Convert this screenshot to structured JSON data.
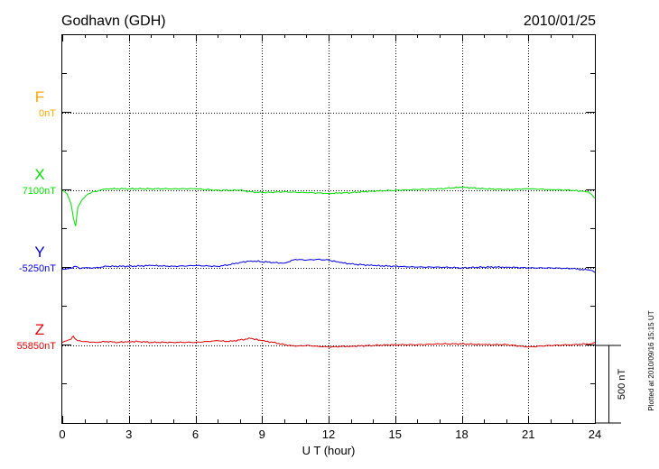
{
  "chart_data": {
    "type": "line",
    "title": "Godhavn (GDH)",
    "date": "2010/01/25",
    "xlabel": "U T (hour)",
    "xlim": [
      0,
      24
    ],
    "xticks": [
      0,
      3,
      6,
      9,
      12,
      15,
      18,
      21,
      24
    ],
    "x_tick_labels": [
      "0",
      "3",
      "6",
      "9",
      "12",
      "15",
      "18",
      "21",
      "24"
    ],
    "scale_bar_label": "500 nT",
    "scale_bar_nT": 500,
    "plotted_at": "Plotted at 2010/09/16 15:15 UT",
    "grid": true,
    "series": [
      {
        "name": "F",
        "baseline_label": "0nT",
        "baseline_nT": 0,
        "color": "#ffa500",
        "x": [],
        "y": []
      },
      {
        "name": "X",
        "baseline_label": "7100nT",
        "baseline_nT": 7100,
        "color": "#00dd00",
        "x": [
          0,
          0.2,
          0.4,
          0.5,
          0.6,
          0.7,
          0.9,
          1.1,
          1.4,
          1.7,
          2,
          3,
          4,
          5,
          6,
          7,
          8,
          8.5,
          9,
          10,
          11,
          12,
          13,
          14,
          15,
          16,
          17,
          18,
          19,
          20,
          21,
          22,
          23,
          23.7,
          24
        ],
        "y": [
          7100,
          7080,
          7010,
          6920,
          6870,
          6990,
          7040,
          7070,
          7090,
          7100,
          7110,
          7110,
          7110,
          7110,
          7110,
          7100,
          7100,
          7090,
          7085,
          7090,
          7085,
          7080,
          7085,
          7095,
          7100,
          7105,
          7110,
          7120,
          7110,
          7105,
          7110,
          7105,
          7100,
          7090,
          7050
        ]
      },
      {
        "name": "Y",
        "baseline_label": "-5250nT",
        "baseline_nT": -5250,
        "color": "#0000dd",
        "x": [
          0,
          0.3,
          0.6,
          0.8,
          1,
          1.5,
          2,
          3,
          4,
          5,
          6,
          7,
          7.5,
          8,
          8.5,
          9,
          9.5,
          10,
          10.5,
          11,
          11.5,
          12,
          12.5,
          13,
          13.5,
          14,
          15,
          16,
          17,
          18,
          19,
          20,
          21,
          22,
          23,
          23.8,
          24
        ],
        "y": [
          -5260,
          -5255,
          -5240,
          -5255,
          -5250,
          -5250,
          -5240,
          -5240,
          -5235,
          -5240,
          -5235,
          -5240,
          -5230,
          -5215,
          -5205,
          -5210,
          -5215,
          -5220,
          -5195,
          -5200,
          -5195,
          -5200,
          -5215,
          -5225,
          -5230,
          -5235,
          -5240,
          -5245,
          -5245,
          -5250,
          -5245,
          -5245,
          -5250,
          -5250,
          -5255,
          -5265,
          -5280
        ]
      },
      {
        "name": "Z",
        "baseline_label": "55850nT",
        "baseline_nT": 55850,
        "color": "#dd0000",
        "x": [
          0,
          0.2,
          0.4,
          0.5,
          0.6,
          0.8,
          1,
          1.5,
          2,
          2.5,
          3,
          3.5,
          4,
          5,
          6,
          7,
          7.5,
          8,
          8.5,
          9,
          9.5,
          10,
          10.5,
          11,
          11.5,
          12,
          13,
          14,
          15,
          16,
          17,
          18,
          19,
          20,
          21,
          22,
          23,
          23.8,
          24
        ],
        "y": [
          55870,
          55880,
          55890,
          55910,
          55890,
          55880,
          55875,
          55870,
          55875,
          55870,
          55875,
          55875,
          55870,
          55870,
          55870,
          55880,
          55875,
          55885,
          55895,
          55880,
          55870,
          55855,
          55845,
          55850,
          55845,
          55840,
          55845,
          55850,
          55855,
          55855,
          55860,
          55860,
          55855,
          55855,
          55840,
          55850,
          55855,
          55860,
          55870
        ]
      }
    ]
  }
}
